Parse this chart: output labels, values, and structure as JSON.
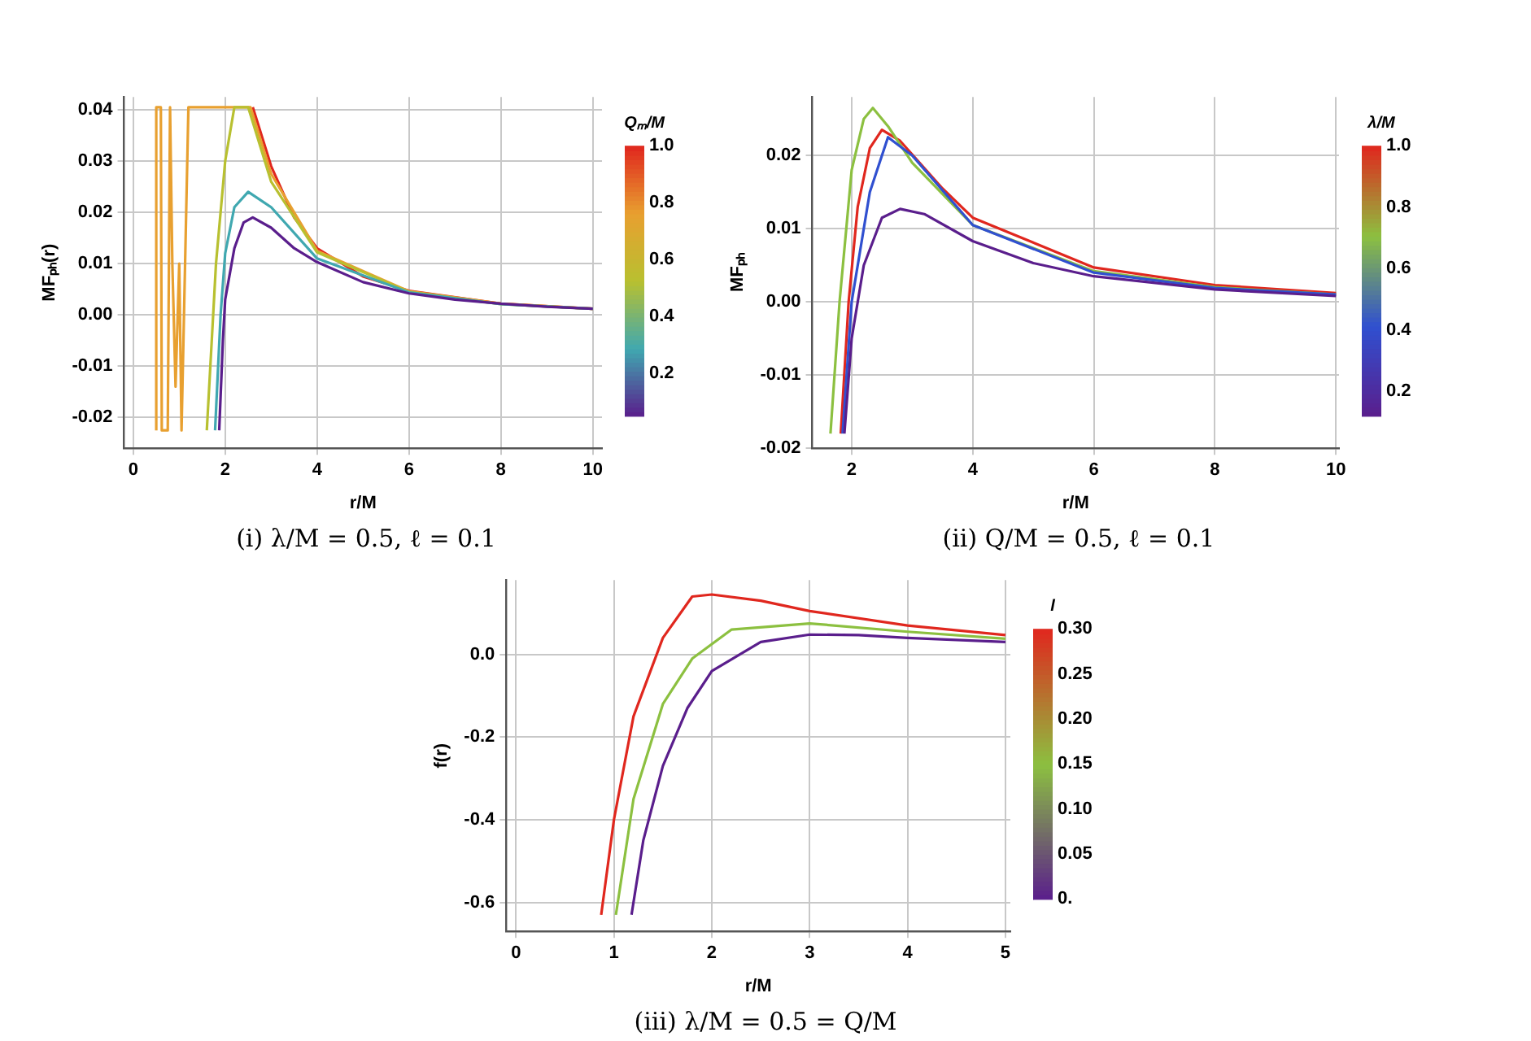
{
  "chart_data": [
    {
      "type": "line",
      "xlabel": "r/M",
      "ylabel": "MFₚₕ(r)",
      "clabel": "Qₘ/M",
      "clim": [
        0.05,
        1.0
      ],
      "cticks": [
        0.2,
        0.4,
        0.6,
        0.8,
        {
          "value": 1.0,
          "label": "1.0"
        }
      ],
      "xlim": [
        -0.2,
        10.2
      ],
      "xticks": [
        0,
        2,
        4,
        6,
        8,
        10
      ],
      "ylim": [
        -0.026,
        0.0425
      ],
      "yticks": [
        {
          "value": -0.02,
          "label": "-0.02"
        },
        {
          "value": -0.01,
          "label": "-0.01"
        },
        {
          "value": 0,
          "label": "0.00"
        },
        {
          "value": 0.01,
          "label": "0.01"
        },
        {
          "value": 0.02,
          "label": "0.02"
        },
        {
          "value": 0.03,
          "label": "0.03"
        },
        {
          "value": 0.04,
          "label": "0.04"
        }
      ],
      "grid": true,
      "legend": false,
      "annotations": [
        "(i) λ/M = 0.5, ℓ = 0.1"
      ],
      "series": [
        {
          "color": "#5a1e8c",
          "x": [
            1.87,
            1.95,
            2.0,
            2.2,
            2.4,
            2.6,
            3,
            3.5,
            4,
            5,
            6,
            7,
            8,
            9,
            10
          ],
          "values": [
            -0.0225,
            -0.005,
            0.003,
            0.013,
            0.018,
            0.019,
            0.017,
            0.013,
            0.0103,
            0.0064,
            0.0042,
            0.003,
            0.0022,
            0.0016,
            0.0012
          ]
        },
        {
          "color": "#40a8b0",
          "x": [
            1.78,
            1.9,
            2.0,
            2.2,
            2.5,
            3,
            4,
            6,
            8,
            10
          ],
          "values": [
            -0.0225,
            0.0,
            0.012,
            0.021,
            0.024,
            0.021,
            0.011,
            0.0044,
            0.0021,
            0.0012
          ]
        },
        {
          "color": "#b8c030",
          "x": [
            1.6,
            1.8,
            2.0,
            2.2,
            2.5,
            3,
            4,
            6,
            8,
            10
          ],
          "values": [
            -0.0225,
            0.01,
            0.03,
            0.0405,
            0.0405,
            0.026,
            0.0122,
            0.0045,
            0.0021,
            0.0012
          ]
        },
        {
          "color": "#e8a030",
          "x": [
            0.5,
            0.5,
            0.6,
            0.62,
            0.75,
            0.8,
            0.85,
            0.92,
            1.0,
            1.05,
            1.2,
            1.3,
            2.55,
            3,
            4,
            6,
            8,
            10
          ],
          "values": [
            -0.0225,
            0.0405,
            0.0405,
            -0.0225,
            -0.0225,
            0.0405,
            0.01,
            -0.014,
            0.01,
            -0.0225,
            0.0405,
            0.0405,
            0.0405,
            0.0275,
            0.0125,
            0.0046,
            0.0022,
            0.0012
          ]
        },
        {
          "color": "#e0271e",
          "x": [
            2.6,
            3,
            3.5,
            4,
            5,
            6,
            8,
            10
          ],
          "values": [
            0.0405,
            0.029,
            0.019,
            0.013,
            0.0075,
            0.0047,
            0.0022,
            0.0012
          ]
        }
      ]
    },
    {
      "type": "line",
      "xlabel": "r/M",
      "ylabel": "MFₚₕ",
      "clabel": "λ/M",
      "clim": [
        0.12,
        1.0
      ],
      "cticks": [
        0.2,
        0.4,
        0.6,
        0.8,
        {
          "value": 1.0,
          "label": "1.0"
        }
      ],
      "xlim": [
        1.35,
        10.05
      ],
      "xticks": [
        2,
        4,
        6,
        8,
        10
      ],
      "ylim": [
        -0.02,
        0.028
      ],
      "yticks": [
        {
          "value": -0.02,
          "label": "-0.02"
        },
        {
          "value": -0.01,
          "label": "-0.01"
        },
        {
          "value": 0,
          "label": "0.00"
        },
        {
          "value": 0.01,
          "label": "0.01"
        },
        {
          "value": 0.02,
          "label": "0.02"
        }
      ],
      "grid": true,
      "legend": false,
      "annotations": [
        "(ii) Q/M = 0.5, ℓ = 0.1"
      ],
      "series": [
        {
          "color": "#5a1e8c",
          "x": [
            1.88,
            2.0,
            2.2,
            2.5,
            2.8,
            3.2,
            4,
            5,
            6,
            8,
            10
          ],
          "values": [
            -0.018,
            -0.005,
            0.005,
            0.0115,
            0.0127,
            0.012,
            0.0083,
            0.0053,
            0.0035,
            0.0017,
            0.0008
          ]
        },
        {
          "color": "#3050d0",
          "x": [
            1.85,
            2.0,
            2.3,
            2.6,
            3,
            4,
            6,
            8,
            10
          ],
          "values": [
            -0.018,
            0.0,
            0.015,
            0.0225,
            0.02,
            0.0105,
            0.004,
            0.0019,
            0.001
          ]
        },
        {
          "color": "#8cc040",
          "x": [
            1.65,
            1.8,
            2.0,
            2.2,
            2.35,
            2.6,
            3,
            4,
            6,
            8,
            10
          ],
          "values": [
            -0.018,
            0.0,
            0.018,
            0.025,
            0.0265,
            0.024,
            0.019,
            0.0105,
            0.0042,
            0.002,
            0.001
          ]
        },
        {
          "color": "#e0271e",
          "x": [
            1.82,
            1.95,
            2.1,
            2.3,
            2.5,
            2.8,
            3.5,
            4,
            6,
            8,
            10
          ],
          "values": [
            -0.018,
            0.0,
            0.013,
            0.021,
            0.0235,
            0.022,
            0.0155,
            0.0115,
            0.0047,
            0.0023,
            0.0012
          ]
        }
      ]
    },
    {
      "type": "line",
      "xlabel": "r/M",
      "ylabel": "f(r)",
      "clabel": "l",
      "clim": [
        0,
        0.3
      ],
      "cticks": [
        {
          "value": 0,
          "label": "0."
        },
        0.05,
        {
          "value": 0.1,
          "label": "0.10"
        },
        0.15,
        {
          "value": 0.2,
          "label": "0.20"
        },
        0.25,
        {
          "value": 0.3,
          "label": "0.30"
        }
      ],
      "xlim": [
        -0.1,
        5.05
      ],
      "xticks": [
        0,
        1,
        2,
        3,
        4,
        5
      ],
      "ylim": [
        -0.67,
        0.18
      ],
      "yticks": [
        {
          "value": -0.6,
          "label": "-0.6"
        },
        {
          "value": -0.4,
          "label": "-0.4"
        },
        {
          "value": -0.2,
          "label": "-0.2"
        },
        {
          "value": 0,
          "label": "0.0"
        }
      ],
      "grid": true,
      "legend": false,
      "annotations": [
        "(iii) λ/M = 0.5 = Q/M"
      ],
      "series": [
        {
          "color": "#5a1e8c",
          "x": [
            1.18,
            1.3,
            1.5,
            1.75,
            2,
            2.5,
            3,
            3.5,
            4,
            5
          ],
          "values": [
            -0.63,
            -0.45,
            -0.27,
            -0.13,
            -0.04,
            0.03,
            0.048,
            0.047,
            0.04,
            0.03
          ]
        },
        {
          "color": "#8cc040",
          "x": [
            1.02,
            1.2,
            1.5,
            1.8,
            2.2,
            3,
            4,
            5
          ],
          "values": [
            -0.63,
            -0.35,
            -0.12,
            -0.01,
            0.06,
            0.075,
            0.055,
            0.038
          ]
        },
        {
          "color": "#e0271e",
          "x": [
            0.87,
            1.0,
            1.2,
            1.5,
            1.8,
            2,
            2.5,
            3,
            4,
            5
          ],
          "values": [
            -0.63,
            -0.4,
            -0.15,
            0.04,
            0.14,
            0.145,
            0.13,
            0.105,
            0.07,
            0.047
          ]
        }
      ]
    }
  ]
}
